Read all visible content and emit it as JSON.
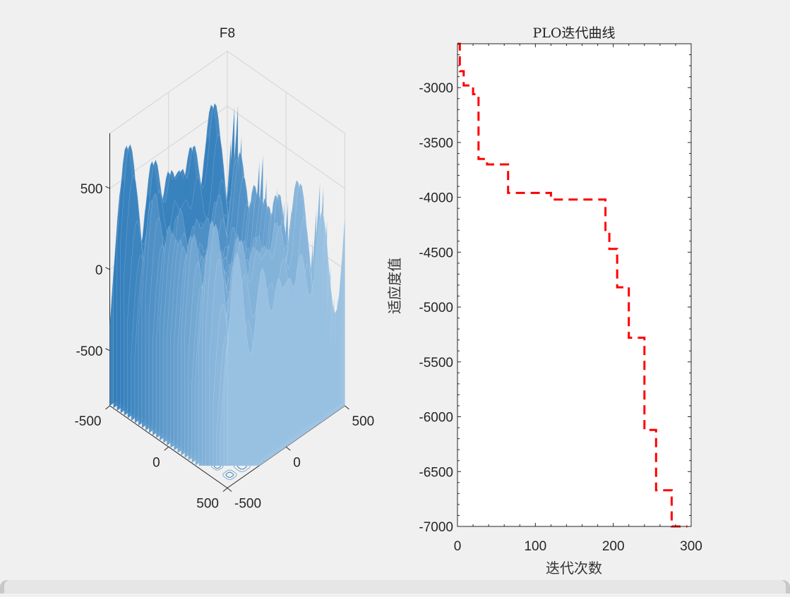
{
  "chart_data": [
    {
      "type": "surface3d",
      "title": "F8",
      "z_ticks": [
        "500",
        "0",
        "-500"
      ],
      "x_ticks": [
        "-500",
        "0",
        "500"
      ],
      "y_ticks": [
        "-500",
        "0",
        "500"
      ],
      "xlim": [
        -500,
        500
      ],
      "ylim": [
        -500,
        500
      ],
      "zlim": [
        -840,
        840
      ],
      "colormap": [
        "#0b64ad",
        "#bcd8ef"
      ],
      "contour_color": "#2677b5",
      "grid": true
    },
    {
      "type": "line",
      "title": "PLO迭代曲线",
      "xlabel": "迭代次数",
      "ylabel": "适应度值",
      "xlim": [
        0,
        300
      ],
      "ylim": [
        -7000,
        -2600
      ],
      "xticks": [
        "0",
        "100",
        "200",
        "300"
      ],
      "yticks": [
        "-3000",
        "-3500",
        "-4000",
        "-4500",
        "-5000",
        "-5500",
        "-6000",
        "-6500",
        "-7000"
      ],
      "line_color": "#ff0000",
      "line_style": "dashed",
      "series": [
        {
          "x": [
            0,
            3,
            3,
            8,
            8,
            20,
            20,
            27,
            27,
            38,
            38,
            55,
            55,
            65,
            65,
            120,
            120,
            190,
            190,
            195,
            195,
            205,
            205,
            210,
            210,
            220,
            220,
            240,
            240,
            255,
            255,
            275,
            275,
            295
          ],
          "y": [
            -2600,
            -2600,
            -2850,
            -2850,
            -2980,
            -2980,
            -3060,
            -3060,
            -3650,
            -3650,
            -3700,
            -3700,
            -3700,
            -3700,
            -3960,
            -3960,
            -4020,
            -4020,
            -4320,
            -4320,
            -4470,
            -4470,
            -4820,
            -4820,
            -4820,
            -4820,
            -5280,
            -5280,
            -6120,
            -6120,
            -6670,
            -6670,
            -7000,
            -7000
          ]
        }
      ]
    }
  ]
}
